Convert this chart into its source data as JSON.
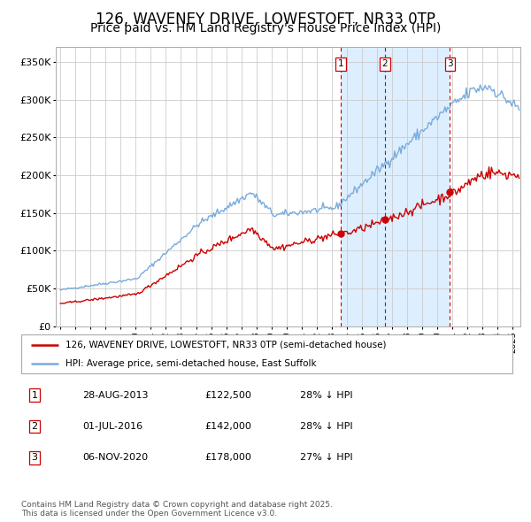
{
  "title": "126, WAVENEY DRIVE, LOWESTOFT, NR33 0TP",
  "subtitle": "Price paid vs. HM Land Registry's House Price Index (HPI)",
  "title_fontsize": 12,
  "subtitle_fontsize": 10,
  "background_color": "#ffffff",
  "plot_bg_color": "#ffffff",
  "grid_color": "#cccccc",
  "shaded_region_color": "#ddeeff",
  "ylim": [
    0,
    370000
  ],
  "yticks": [
    0,
    50000,
    100000,
    150000,
    200000,
    250000,
    300000,
    350000
  ],
  "ytick_labels": [
    "£0",
    "£50K",
    "£100K",
    "£150K",
    "£200K",
    "£250K",
    "£300K",
    "£350K"
  ],
  "xlim_start": 1994.7,
  "xlim_end": 2025.5,
  "sale_dates": [
    "2013-08-28",
    "2016-07-01",
    "2020-11-06"
  ],
  "sale_prices": [
    122500,
    142000,
    178000
  ],
  "sale_labels": [
    "1",
    "2",
    "3"
  ],
  "vline_color": "#cc0000",
  "sale_marker_color": "#cc0000",
  "red_line_color": "#cc0000",
  "blue_line_color": "#7aabdb",
  "legend_red_label": "126, WAVENEY DRIVE, LOWESTOFT, NR33 0TP (semi-detached house)",
  "legend_blue_label": "HPI: Average price, semi-detached house, East Suffolk",
  "table_rows": [
    [
      "1",
      "28-AUG-2013",
      "£122,500",
      "28% ↓ HPI"
    ],
    [
      "2",
      "01-JUL-2016",
      "£142,000",
      "28% ↓ HPI"
    ],
    [
      "3",
      "06-NOV-2020",
      "£178,000",
      "27% ↓ HPI"
    ]
  ],
  "footer_text": "Contains HM Land Registry data © Crown copyright and database right 2025.\nThis data is licensed under the Open Government Licence v3.0.",
  "label_box_color": "#cc0000",
  "label_text_color": "#000000",
  "label_box_facecolor": "#ffffff"
}
